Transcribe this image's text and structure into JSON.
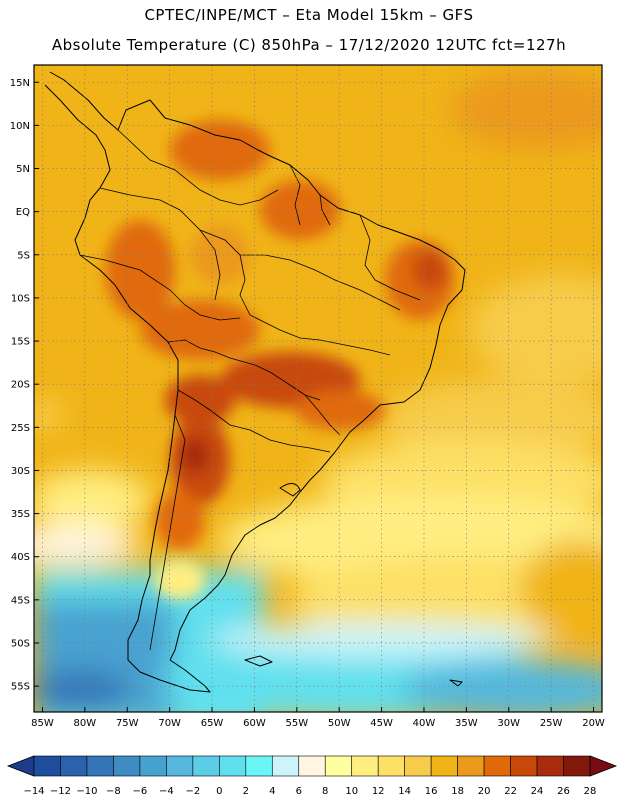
{
  "title": {
    "line1": "CPTEC/INPE/MCT –  Eta Model 15km – GFS",
    "line2": "Absolute Temperature (C) 850hPa – 17/12/2020 12UTC fct=127h"
  },
  "chart_data": {
    "type": "filled-contour-map",
    "variable": "Absolute Temperature (C) 850hPa",
    "model": "Eta Model 15km – GFS",
    "run": "17/12/2020 12UTC",
    "forecast_hours": 127,
    "lon_range": [
      -86,
      -19
    ],
    "lat_range": [
      -58,
      17
    ],
    "lat_ticks": [
      {
        "value": 15,
        "label": "15N"
      },
      {
        "value": 10,
        "label": "10N"
      },
      {
        "value": 5,
        "label": "5N"
      },
      {
        "value": 0,
        "label": "EQ"
      },
      {
        "value": -5,
        "label": "5S"
      },
      {
        "value": -10,
        "label": "10S"
      },
      {
        "value": -15,
        "label": "15S"
      },
      {
        "value": -20,
        "label": "20S"
      },
      {
        "value": -25,
        "label": "25S"
      },
      {
        "value": -30,
        "label": "30S"
      },
      {
        "value": -35,
        "label": "35S"
      },
      {
        "value": -40,
        "label": "40S"
      },
      {
        "value": -45,
        "label": "45S"
      },
      {
        "value": -50,
        "label": "50S"
      },
      {
        "value": -55,
        "label": "55S"
      }
    ],
    "lon_ticks": [
      {
        "value": -85,
        "label": "85W"
      },
      {
        "value": -80,
        "label": "80W"
      },
      {
        "value": -75,
        "label": "75W"
      },
      {
        "value": -70,
        "label": "70W"
      },
      {
        "value": -65,
        "label": "65W"
      },
      {
        "value": -60,
        "label": "60W"
      },
      {
        "value": -55,
        "label": "55W"
      },
      {
        "value": -50,
        "label": "50W"
      },
      {
        "value": -45,
        "label": "45W"
      },
      {
        "value": -40,
        "label": "40W"
      },
      {
        "value": -35,
        "label": "35W"
      },
      {
        "value": -30,
        "label": "30W"
      },
      {
        "value": -25,
        "label": "25W"
      },
      {
        "value": -20,
        "label": "20W"
      }
    ],
    "colorbar": {
      "levels": [
        "-14",
        "-12",
        "-10",
        "-8",
        "-6",
        "-4",
        "-2",
        "0",
        "2",
        "4",
        "6",
        "8",
        "10",
        "12",
        "14",
        "16",
        "18",
        "20",
        "22",
        "24",
        "26",
        "28"
      ],
      "colors": [
        "#1e3c8c",
        "#1f4e9e",
        "#2a62ae",
        "#3576b8",
        "#3d8cc4",
        "#48a2d0",
        "#55b8dc",
        "#5ccde6",
        "#60e0ee",
        "#6af6f6",
        "#cdf4fa",
        "#fff5e0",
        "#ffffa0",
        "#ffee82",
        "#fde066",
        "#f7cc4c",
        "#f0b418",
        "#eb9a1e",
        "#e06a0a",
        "#c8480a",
        "#a82c0c",
        "#821a0c",
        "#780c14"
      ]
    },
    "annotations": [
      "South America continental outline",
      "dotted lat/lon grid every 5 degrees"
    ]
  }
}
